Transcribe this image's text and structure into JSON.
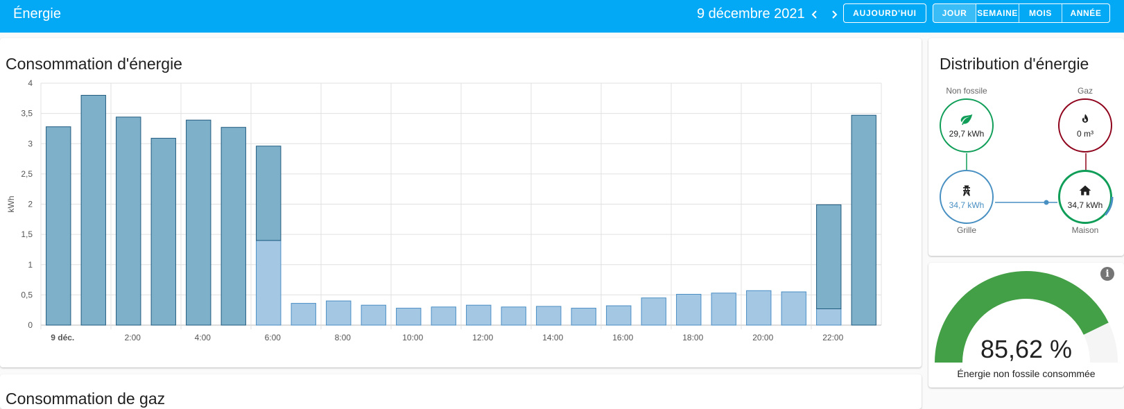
{
  "header": {
    "title": "Énergie",
    "date": "9 décembre 2021",
    "today_label": "AUJOURD'HUI",
    "periods": [
      {
        "label": "JOUR",
        "active": true
      },
      {
        "label": "SEMAINE",
        "active": false
      },
      {
        "label": "MOIS",
        "active": false
      },
      {
        "label": "ANNÉE",
        "active": false
      }
    ]
  },
  "consumption": {
    "title": "Consommation d'énergie"
  },
  "gas": {
    "title": "Consommation de gaz"
  },
  "distribution": {
    "title": "Distribution d'énergie",
    "non_fossil": {
      "label": "Non fossile",
      "value": "29,7 kWh",
      "color": "#0f9d58"
    },
    "gas": {
      "label": "Gaz",
      "value": "0 m³",
      "color": "#8e021b"
    },
    "grid": {
      "label": "Grille",
      "value": "34,7 kWh",
      "color": "#488fc2"
    },
    "home": {
      "label": "Maison",
      "value": "34,7 kWh",
      "color": "#0f9d58"
    }
  },
  "gauge": {
    "value": "85,62 %",
    "fraction": 0.8562,
    "label": "Énergie non fossile consommée",
    "color": "#43a047"
  },
  "chart_data": {
    "type": "bar",
    "stacked": true,
    "ylabel": "kWh",
    "ylim": [
      0,
      4
    ],
    "yticks": [
      "0",
      "0,5",
      "1",
      "1,5",
      "2",
      "2,5",
      "3",
      "3,5",
      "4"
    ],
    "xtick_labels": [
      "9 déc.",
      "2:00",
      "4:00",
      "6:00",
      "8:00",
      "10:00",
      "12:00",
      "14:00",
      "16:00",
      "18:00",
      "20:00",
      "22:00"
    ],
    "grid": true,
    "series": [
      {
        "color": "#a4c8e4",
        "border": "#4a8dc3",
        "values": [
          0,
          0,
          0,
          0,
          0,
          0,
          1.4,
          0.36,
          0.4,
          0.33,
          0.28,
          0.3,
          0.33,
          0.3,
          0.31,
          0.28,
          0.32,
          0.45,
          0.51,
          0.53,
          0.57,
          0.55,
          0.27,
          0
        ]
      },
      {
        "color": "#7eb0c9",
        "border": "#1f5a7f",
        "values": [
          3.28,
          3.8,
          3.44,
          3.09,
          3.39,
          3.27,
          1.56,
          0,
          0,
          0,
          0,
          0,
          0,
          0,
          0,
          0,
          0,
          0,
          0,
          0,
          0,
          0,
          1.72,
          3.47
        ]
      }
    ]
  }
}
